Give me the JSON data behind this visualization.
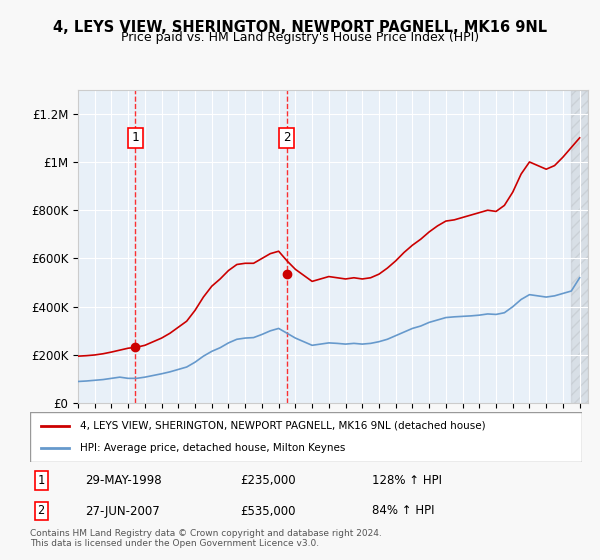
{
  "title": "4, LEYS VIEW, SHERINGTON, NEWPORT PAGNELL, MK16 9NL",
  "subtitle": "Price paid vs. HM Land Registry's House Price Index (HPI)",
  "ylabel": "",
  "xlabel": "",
  "ylim": [
    0,
    1300000
  ],
  "xlim_start": 1995.0,
  "xlim_end": 2025.5,
  "yticks": [
    0,
    200000,
    400000,
    600000,
    800000,
    1000000,
    1200000
  ],
  "ytick_labels": [
    "£0",
    "£200K",
    "£400K",
    "£600K",
    "£800K",
    "£1M",
    "£1.2M"
  ],
  "sale1_date": 1998.41,
  "sale1_price": 235000,
  "sale1_label": "1",
  "sale1_display": "29-MAY-1998",
  "sale1_amount": "£235,000",
  "sale1_hpi": "128% ↑ HPI",
  "sale2_date": 2007.49,
  "sale2_price": 535000,
  "sale2_label": "2",
  "sale2_display": "27-JUN-2007",
  "sale2_amount": "£535,000",
  "sale2_hpi": "84% ↑ HPI",
  "red_line_color": "#cc0000",
  "blue_line_color": "#6699cc",
  "background_color": "#ddeeff",
  "plot_bg_color": "#f0f4ff",
  "legend_label_red": "4, LEYS VIEW, SHERINGTON, NEWPORT PAGNELL, MK16 9NL (detached house)",
  "legend_label_blue": "HPI: Average price, detached house, Milton Keynes",
  "footer1": "Contains HM Land Registry data © Crown copyright and database right 2024.",
  "footer2": "This data is licensed under the Open Government Licence v3.0."
}
